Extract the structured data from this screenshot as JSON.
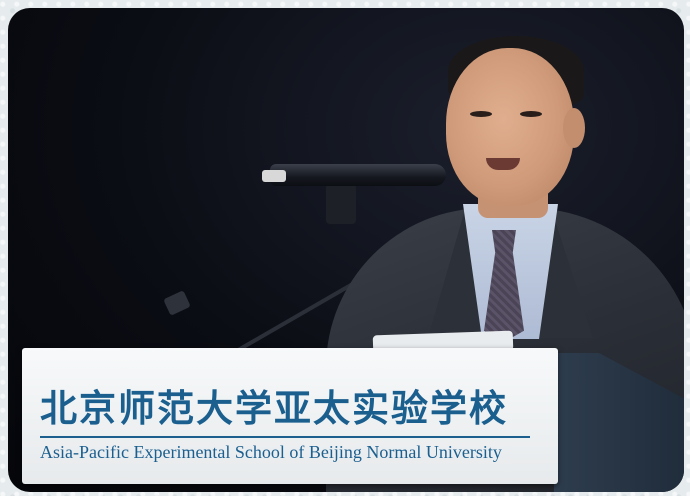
{
  "podium": {
    "school_name_cn": "北京师范大学亚太实验学校",
    "school_name_en": "Asia-Pacific Experimental School of Beijing Normal University"
  },
  "colors": {
    "brand_blue": "#1b5f8f",
    "background": "#0b0d14"
  }
}
